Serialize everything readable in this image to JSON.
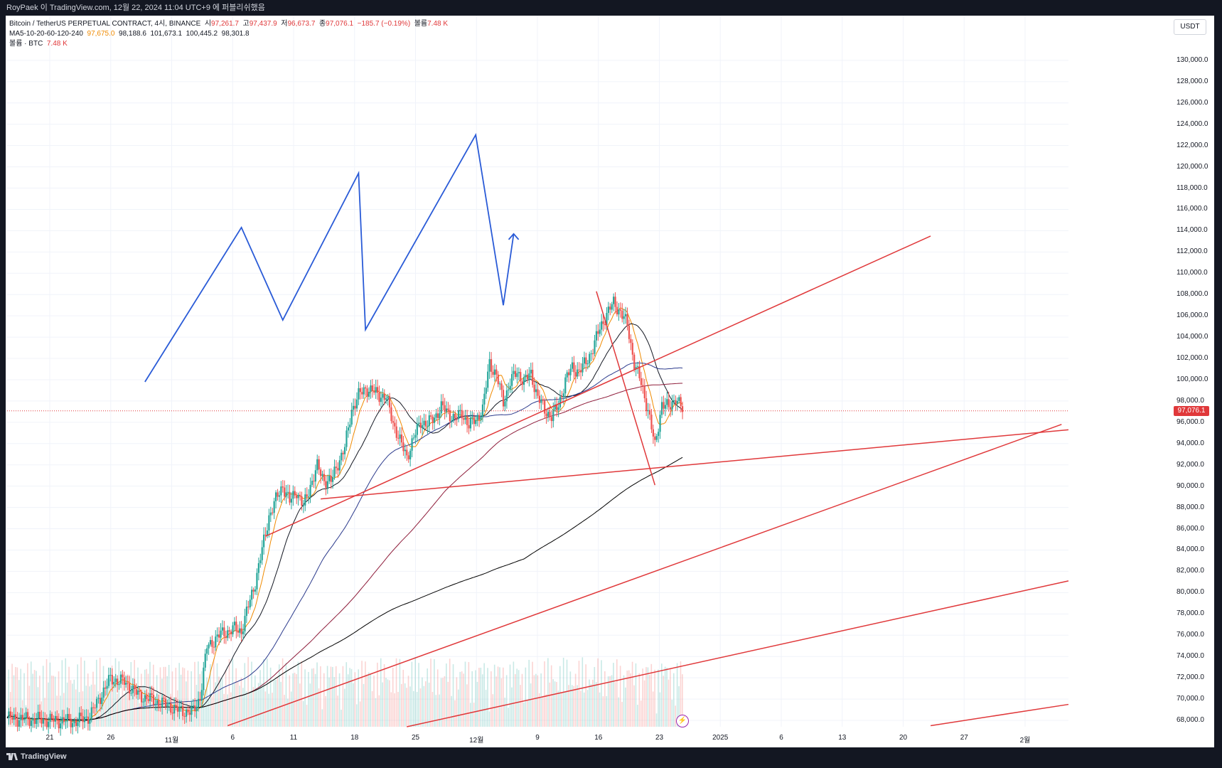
{
  "header": {
    "publisher_line": "RoyPaek 이 TradingView.com, 12월 22, 2024 11:04 UTC+9 에 퍼블리쉬했음"
  },
  "legend": {
    "symbol": "Bitcoin / TetherUS PERPETUAL CONTRACT, 4시, BINANCE",
    "o_label": "시",
    "o_value": "97,261.7",
    "h_label": "고",
    "h_value": "97,437.9",
    "l_label": "저",
    "l_value": "96,673.7",
    "c_label": "종",
    "c_value": "97,076.1",
    "change": "−185.7 (−0.19%)",
    "vol_label": "볼륨",
    "vol_value": "7.48 K",
    "ma_label": "MA5-10-20-60-120-240",
    "ma_values": [
      "97,675.0",
      "98,188.6",
      "101,673.1",
      "100,445.2",
      "98,301.8"
    ],
    "vol_line_label": "볼륨 · BTC",
    "vol_line_value": "7.48 K"
  },
  "currency": "USDT",
  "last_price": "97,076.1",
  "footer": {
    "brand": "TradingView"
  },
  "colors": {
    "up": "#26a69a",
    "down": "#ef5350",
    "trendline": "#e0383a",
    "projection": "#2a5bd7",
    "ma5": "#f08a00",
    "ma20": "#131722",
    "ma60": "#2b3a8c",
    "ma120": "#8e1c3a",
    "ma240": "#000000",
    "ma_extra": "#e0383a"
  },
  "chart_data": {
    "type": "candlestick",
    "title": "Bitcoin / TetherUS PERPETUAL CONTRACT, 4시, BINANCE",
    "y_axis_labels": [
      "130,000.0",
      "128,000.0",
      "126,000.0",
      "124,000.0",
      "122,000.0",
      "120,000.0",
      "118,000.0",
      "116,000.0",
      "114,000.0",
      "112,000.0",
      "110,000.0",
      "108,000.0",
      "106,000.0",
      "104,000.0",
      "102,000.0",
      "100,000.0",
      "98,000.0",
      "96,000.0",
      "94,000.0",
      "92,000.0",
      "90,000.0",
      "88,000.0",
      "86,000.0",
      "84,000.0",
      "82,000.0",
      "80,000.0",
      "78,000.0",
      "76,000.0",
      "74,000.0",
      "72,000.0",
      "70,000.0",
      "68,000.0"
    ],
    "ylim": [
      67400,
      134200
    ],
    "x_axis_labels": [
      "21",
      "26",
      "11월",
      "6",
      "11",
      "18",
      "25",
      "12월",
      "9",
      "16",
      "23",
      "2025",
      "6",
      "13",
      "20",
      "27",
      "2월"
    ],
    "price_path": [
      [
        0,
        68200
      ],
      [
        10,
        67900
      ],
      [
        12,
        68400
      ],
      [
        14,
        70800
      ],
      [
        15,
        71900
      ],
      [
        17,
        71600
      ],
      [
        19,
        70400
      ],
      [
        21,
        69900
      ],
      [
        23,
        69500
      ],
      [
        25,
        68900
      ],
      [
        27,
        68800
      ],
      [
        28,
        70200
      ],
      [
        29,
        74900
      ],
      [
        31,
        76100
      ],
      [
        33,
        76600
      ],
      [
        34,
        76400
      ],
      [
        36,
        81000
      ],
      [
        37,
        84000
      ],
      [
        38,
        87200
      ],
      [
        39,
        88700
      ],
      [
        40,
        90100
      ],
      [
        41,
        88500
      ],
      [
        42,
        89600
      ],
      [
        43,
        88000
      ],
      [
        44,
        90100
      ],
      [
        45,
        91800
      ],
      [
        46,
        90600
      ],
      [
        47,
        90400
      ],
      [
        48,
        92200
      ],
      [
        49,
        93600
      ],
      [
        50,
        97200
      ],
      [
        51,
        98500
      ],
      [
        52,
        99200
      ],
      [
        53,
        98900
      ],
      [
        55,
        98300
      ],
      [
        56,
        96000
      ],
      [
        57,
        94200
      ],
      [
        58,
        92800
      ],
      [
        59,
        94500
      ],
      [
        60,
        96100
      ],
      [
        61,
        95800
      ],
      [
        62,
        96500
      ],
      [
        63,
        97400
      ],
      [
        64,
        96900
      ],
      [
        65,
        96300
      ],
      [
        66,
        96900
      ],
      [
        67,
        95700
      ],
      [
        68,
        96300
      ],
      [
        69,
        97200
      ],
      [
        70,
        101600
      ],
      [
        71,
        100400
      ],
      [
        72,
        97900
      ],
      [
        73,
        99800
      ],
      [
        74,
        100700
      ],
      [
        75,
        99900
      ],
      [
        76,
        100500
      ],
      [
        77,
        98400
      ],
      [
        78,
        97100
      ],
      [
        79,
        96600
      ],
      [
        80,
        97500
      ],
      [
        81,
        100000
      ],
      [
        82,
        101100
      ],
      [
        83,
        100800
      ],
      [
        84,
        101600
      ],
      [
        85,
        103000
      ],
      [
        86,
        104800
      ],
      [
        87,
        106200
      ],
      [
        88,
        107200
      ],
      [
        89,
        106400
      ],
      [
        90,
        105100
      ],
      [
        91,
        101600
      ],
      [
        92,
        99600
      ],
      [
        93,
        97200
      ],
      [
        94,
        93700
      ],
      [
        95,
        97800
      ],
      [
        96,
        97300
      ],
      [
        97,
        98400
      ],
      [
        98,
        97076.1
      ]
    ],
    "timeline": {
      "last_candle_index": 98,
      "right_edge_index": 154
    },
    "moving_averages": [
      {
        "name": "MA5",
        "value": "97,675.0"
      },
      {
        "name": "MA10",
        "value": "98,188.6"
      },
      {
        "name": "MA20",
        "value": "101,673.1"
      },
      {
        "name": "MA60",
        "value": "100,445.2"
      },
      {
        "name": "MA120",
        "value": "98,301.8"
      },
      {
        "name": "MA240"
      }
    ],
    "volume_unit": "BTC",
    "annotations": {
      "projection_path": [
        [
          20,
          99800
        ],
        [
          34,
          114300
        ],
        [
          40,
          105600
        ],
        [
          51,
          119400
        ],
        [
          52,
          104700
        ],
        [
          68,
          123000
        ],
        [
          72,
          107000
        ],
        [
          73.5,
          113700
        ]
      ],
      "trendlines": [
        {
          "from": [
            37.5,
            85300
          ],
          "to": [
            134,
            113500
          ]
        },
        {
          "from": [
            45.5,
            88800
          ],
          "to": [
            154,
            95300
          ]
        },
        {
          "from": [
            32,
            67500
          ],
          "to": [
            153,
            95800
          ]
        },
        {
          "from": [
            58,
            67400
          ],
          "to": [
            154,
            81100
          ]
        },
        {
          "from": [
            134,
            67500
          ],
          "to": [
            154,
            69500
          ]
        },
        {
          "from": [
            85.5,
            108300
          ],
          "to": [
            94,
            90100
          ]
        }
      ],
      "current_price_line": 97076.1
    }
  }
}
